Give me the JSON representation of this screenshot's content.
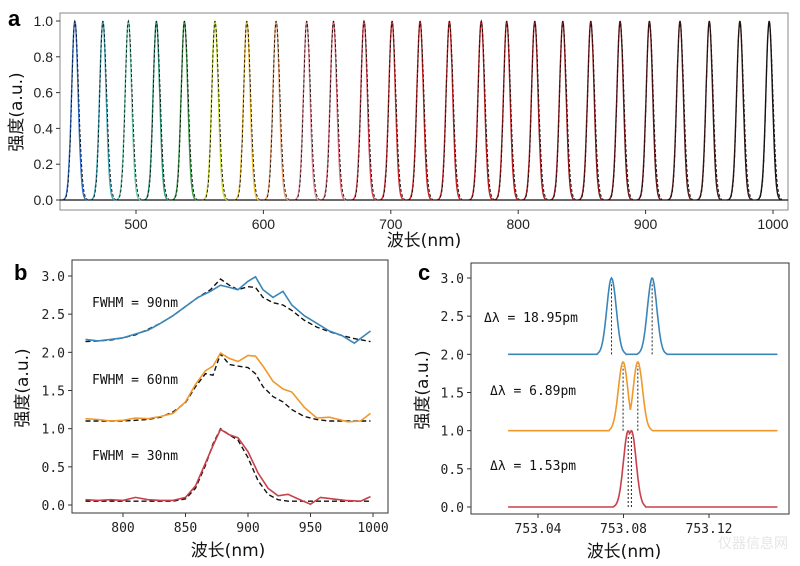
{
  "chart_data": [
    {
      "panel": "a",
      "type": "line",
      "title": "",
      "xlabel": "波长(nm)",
      "ylabel": "强度(a.u.)",
      "xlim": [
        445,
        1010
      ],
      "ylim": [
        -0.04,
        1.04
      ],
      "xticks": [
        500,
        600,
        700,
        800,
        900,
        1000
      ],
      "yticks": [
        0.0,
        0.2,
        0.4,
        0.6,
        0.8,
        1.0
      ],
      "xtick_labels": [
        "500",
        "600",
        "700",
        "800",
        "900",
        "1000"
      ],
      "ytick_labels": [
        "0.0",
        "0.2",
        "0.4",
        "0.6",
        "0.8",
        "1.0"
      ],
      "grid": false,
      "peak_fwhm_nm": 6,
      "reference_style": "black dashed",
      "series": [
        {
          "peak_nm": 452,
          "amplitude": 1.0,
          "color": "#2f6fcf"
        },
        {
          "peak_nm": 474,
          "amplitude": 1.0,
          "color": "#3aa7b8"
        },
        {
          "peak_nm": 494,
          "amplitude": 1.0,
          "color": "#6fcfb5"
        },
        {
          "peak_nm": 516,
          "amplitude": 1.0,
          "color": "#2a9a7a"
        },
        {
          "peak_nm": 538,
          "amplitude": 1.0,
          "color": "#3a9a4a"
        },
        {
          "peak_nm": 562,
          "amplitude": 1.0,
          "color": "#cddc30"
        },
        {
          "peak_nm": 587,
          "amplitude": 1.0,
          "color": "#f0c030"
        },
        {
          "peak_nm": 610,
          "amplitude": 1.0,
          "color": "#e8a070"
        },
        {
          "peak_nm": 634,
          "amplitude": 1.0,
          "color": "#e08a98"
        },
        {
          "peak_nm": 655,
          "amplitude": 1.0,
          "color": "#e06a7a"
        },
        {
          "peak_nm": 679,
          "amplitude": 1.0,
          "color": "#d84050"
        },
        {
          "peak_nm": 701,
          "amplitude": 1.0,
          "color": "#d02a30"
        },
        {
          "peak_nm": 723,
          "amplitude": 1.0,
          "color": "#cc2020"
        },
        {
          "peak_nm": 746,
          "amplitude": 1.0,
          "color": "#c81e22"
        },
        {
          "peak_nm": 771,
          "amplitude": 1.0,
          "color": "#c01c20"
        },
        {
          "peak_nm": 791,
          "amplitude": 1.0,
          "color": "#b81a1e"
        },
        {
          "peak_nm": 813,
          "amplitude": 1.0,
          "color": "#a8181c"
        },
        {
          "peak_nm": 835,
          "amplitude": 1.0,
          "color": "#98161a"
        },
        {
          "peak_nm": 857,
          "amplitude": 1.0,
          "color": "#881418"
        },
        {
          "peak_nm": 880,
          "amplitude": 1.0,
          "color": "#761418"
        },
        {
          "peak_nm": 903,
          "amplitude": 1.0,
          "color": "#651418"
        },
        {
          "peak_nm": 927,
          "amplitude": 1.0,
          "color": "#551a1a"
        },
        {
          "peak_nm": 950,
          "amplitude": 1.0,
          "color": "#451818"
        },
        {
          "peak_nm": 974,
          "amplitude": 1.0,
          "color": "#351616"
        },
        {
          "peak_nm": 997,
          "amplitude": 1.0,
          "color": "#1e1414"
        }
      ]
    },
    {
      "panel": "b",
      "type": "line",
      "title": "",
      "xlabel": "波长(nm)",
      "ylabel": "强度(a.u.)",
      "xlim": [
        760,
        1010
      ],
      "ylim": [
        -0.1,
        3.2
      ],
      "xticks": [
        800,
        850,
        900,
        950,
        1000
      ],
      "yticks": [
        0.0,
        0.5,
        1.0,
        1.5,
        2.0,
        2.5,
        3.0
      ],
      "xtick_labels": [
        "800",
        "850",
        "900",
        "950",
        "1000"
      ],
      "ytick_labels": [
        "0.0",
        "0.5",
        "1.0",
        "1.5",
        "2.0",
        "2.5",
        "3.0"
      ],
      "grid": false,
      "x_range": [
        770,
        998
      ],
      "series": [
        {
          "name": "FWHM = 90nm",
          "fwhm_nm": 90,
          "offset": 2.0,
          "baseline": 0.15,
          "peak": 3.0,
          "center_nm": 885,
          "color": "#3a86b8",
          "x": [
            770,
            780,
            790,
            800,
            810,
            820,
            830,
            840,
            850,
            860,
            870,
            878,
            885,
            892,
            900,
            906,
            912,
            920,
            928,
            935,
            945,
            955,
            965,
            975,
            985,
            998
          ],
          "y": [
            2.17,
            2.15,
            2.17,
            2.19,
            2.24,
            2.29,
            2.38,
            2.48,
            2.6,
            2.72,
            2.8,
            2.88,
            2.85,
            2.82,
            2.93,
            2.99,
            2.82,
            2.72,
            2.8,
            2.62,
            2.48,
            2.38,
            2.28,
            2.22,
            2.12,
            2.28
          ],
          "reference_y": [
            2.14,
            2.15,
            2.16,
            2.19,
            2.23,
            2.3,
            2.38,
            2.48,
            2.6,
            2.72,
            2.82,
            2.96,
            2.88,
            2.82,
            2.86,
            2.85,
            2.72,
            2.65,
            2.62,
            2.55,
            2.42,
            2.33,
            2.27,
            2.22,
            2.18,
            2.14
          ]
        },
        {
          "name": "FWHM = 60nm",
          "fwhm_nm": 60,
          "offset": 1.0,
          "baseline": 0.1,
          "peak": 2.0,
          "center_nm": 880,
          "color": "#f0982a",
          "x": [
            770,
            780,
            790,
            800,
            810,
            820,
            830,
            840,
            850,
            858,
            866,
            872,
            878,
            885,
            892,
            900,
            906,
            912,
            920,
            928,
            935,
            945,
            955,
            965,
            980,
            990,
            998
          ],
          "y": [
            1.13,
            1.12,
            1.1,
            1.11,
            1.14,
            1.13,
            1.16,
            1.2,
            1.35,
            1.58,
            1.76,
            1.82,
            1.99,
            1.92,
            1.88,
            1.96,
            1.95,
            1.82,
            1.62,
            1.52,
            1.48,
            1.28,
            1.14,
            1.15,
            1.09,
            1.1,
            1.2
          ],
          "reference_y": [
            1.1,
            1.1,
            1.1,
            1.1,
            1.11,
            1.12,
            1.15,
            1.22,
            1.34,
            1.55,
            1.72,
            1.7,
            1.98,
            1.84,
            1.82,
            1.8,
            1.72,
            1.55,
            1.42,
            1.35,
            1.25,
            1.16,
            1.12,
            1.1,
            1.1,
            1.1,
            1.1
          ]
        },
        {
          "name": "FWHM = 30nm",
          "fwhm_nm": 30,
          "offset": 0.0,
          "baseline": 0.05,
          "peak": 1.0,
          "center_nm": 880,
          "color": "#c8404a",
          "x": [
            770,
            780,
            790,
            800,
            810,
            820,
            830,
            840,
            850,
            858,
            866,
            872,
            878,
            885,
            892,
            900,
            908,
            916,
            924,
            932,
            940,
            950,
            958,
            968,
            978,
            990,
            998
          ],
          "y": [
            0.07,
            0.06,
            0.07,
            0.06,
            0.1,
            0.07,
            0.06,
            0.06,
            0.1,
            0.25,
            0.55,
            0.78,
            0.99,
            0.92,
            0.88,
            0.7,
            0.42,
            0.22,
            0.12,
            0.14,
            0.08,
            0.01,
            0.1,
            0.08,
            0.06,
            0.05,
            0.11
          ],
          "reference_y": [
            0.05,
            0.05,
            0.05,
            0.05,
            0.05,
            0.05,
            0.05,
            0.05,
            0.08,
            0.22,
            0.52,
            0.8,
            1.0,
            0.92,
            0.85,
            0.62,
            0.32,
            0.14,
            0.07,
            0.05,
            0.05,
            0.05,
            0.05,
            0.05,
            0.05,
            0.05,
            0.05
          ]
        }
      ]
    },
    {
      "panel": "c",
      "type": "line",
      "title": "",
      "xlabel": "波长(nm)",
      "ylabel": "强度(a.u.)",
      "xlim": [
        753.016,
        753.164
      ],
      "ylim": [
        -0.1,
        3.2
      ],
      "xticks": [
        753.04,
        753.08,
        753.12
      ],
      "yticks": [
        0.0,
        0.5,
        1.0,
        1.5,
        2.0,
        2.5,
        3.0
      ],
      "xtick_labels": [
        "753.04",
        "753.08",
        "753.12"
      ],
      "ytick_labels": [
        "0.0",
        "0.5",
        "1.0",
        "1.5",
        "2.0",
        "2.5",
        "3.0"
      ],
      "grid": false,
      "x_range": [
        753.026,
        753.152
      ],
      "series": [
        {
          "name": "Δλ = 18.95pm",
          "delta_pm": 18.95,
          "offset": 2.0,
          "peaks_nm": [
            753.0744,
            753.0934
          ],
          "peak_height": 1.0,
          "color": "#3a86b8"
        },
        {
          "name": "Δλ = 6.89pm",
          "delta_pm": 6.89,
          "offset": 1.0,
          "peaks_nm": [
            753.0798,
            753.0867
          ],
          "peak_height": 0.9,
          "color": "#f0982a"
        },
        {
          "name": "Δλ = 1.53pm",
          "delta_pm": 1.53,
          "offset": 0.0,
          "peaks_nm": [
            753.0822,
            753.0837
          ],
          "peak_height": 1.0,
          "color": "#c8404a"
        }
      ]
    }
  ],
  "panels": {
    "a": {
      "letter": "a",
      "xlabel": "波长(nm)",
      "ylabel": "强度(a.u.)"
    },
    "b": {
      "letter": "b",
      "xlabel": "波长(nm)",
      "ylabel": "强度(a.u.)",
      "annotations": [
        "FWHM = 90nm",
        "FWHM = 60nm",
        "FWHM = 30nm"
      ]
    },
    "c": {
      "letter": "c",
      "xlabel": "波长(nm)",
      "ylabel": "强度(a.u.)",
      "annotations": [
        "Δλ = 18.95pm",
        "Δλ = 6.89pm",
        "Δλ = 1.53pm"
      ]
    }
  },
  "watermark": "仪器信息网"
}
